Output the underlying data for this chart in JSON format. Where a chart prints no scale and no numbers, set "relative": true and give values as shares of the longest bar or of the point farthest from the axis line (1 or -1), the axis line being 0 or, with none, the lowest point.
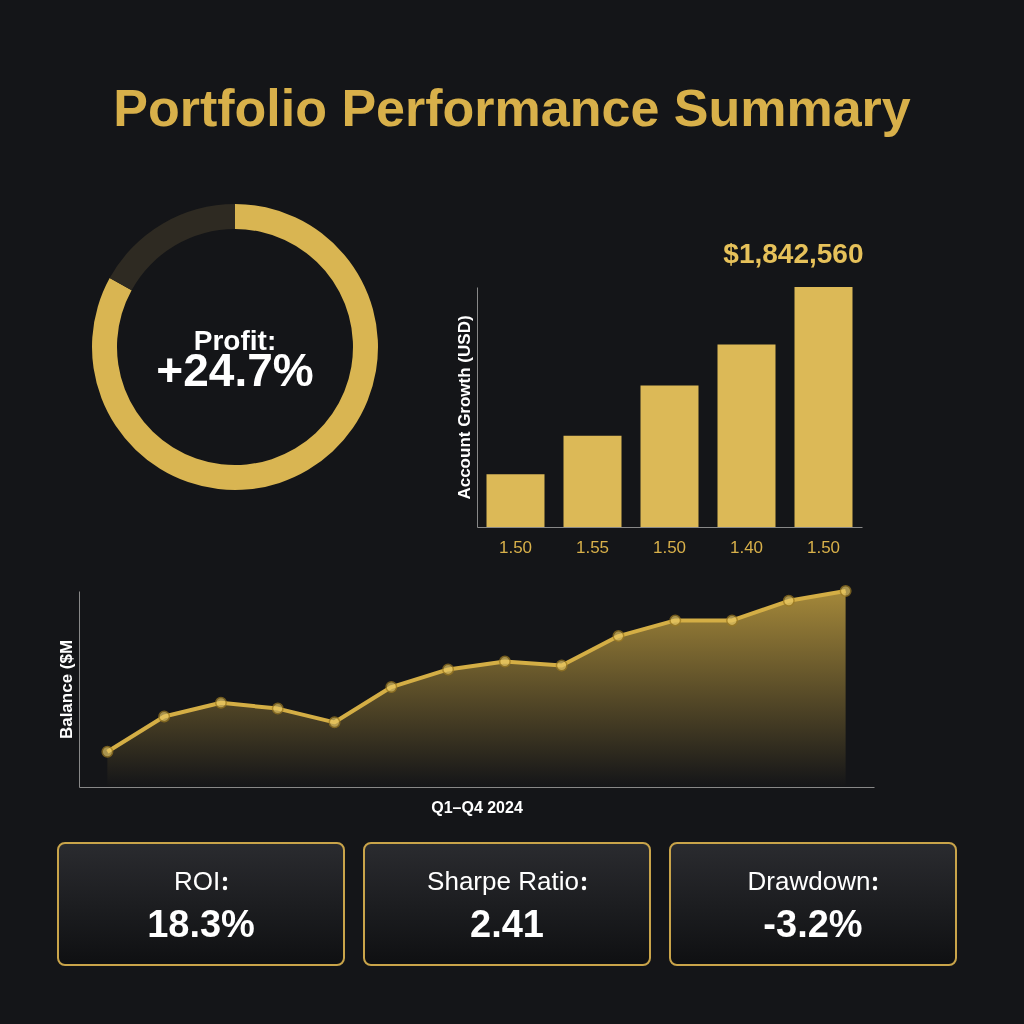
{
  "chart_data": [
    {
      "type": "donut",
      "title": "Portfolio Performance Summary",
      "categories": [
        null,
        null
      ],
      "values": [
        83,
        17
      ],
      "colors": [
        "#d9b552",
        "#2e2a22"
      ],
      "annotations": [
        "Profit:",
        "+24.7%"
      ]
    },
    {
      "type": "bar",
      "ylabel": "Account Growth (USD)",
      "categories": [
        "1.50",
        "1.55",
        "1.50",
        "1.40",
        "1.50"
      ],
      "values": [
        0.22,
        0.38,
        0.59,
        0.76,
        1
      ],
      "color": "#dcb957",
      "relative": true,
      "annotations": [
        "$1,842,560"
      ]
    },
    {
      "type": "area",
      "xlabel": "Q1–Q4 2024",
      "ylabel": "Balance ($M",
      "categories": [
        null,
        null,
        null,
        null,
        null,
        null,
        null,
        null,
        null,
        null,
        null,
        null,
        null,
        null
      ],
      "values": [
        0.18,
        0.36,
        0.43,
        0.4,
        0.33,
        0.51,
        0.6,
        0.64,
        0.62,
        0.77,
        0.85,
        0.85,
        0.95,
        1
      ],
      "color": "#d4ae45",
      "relative": true,
      "marker": "circle"
    },
    {
      "type": "other",
      "categories": [
        "ROI",
        "Sharpe Ratio",
        "Drawdown"
      ],
      "value_labels": [
        "18.3%",
        "2.41",
        "-3.2%"
      ]
    }
  ]
}
